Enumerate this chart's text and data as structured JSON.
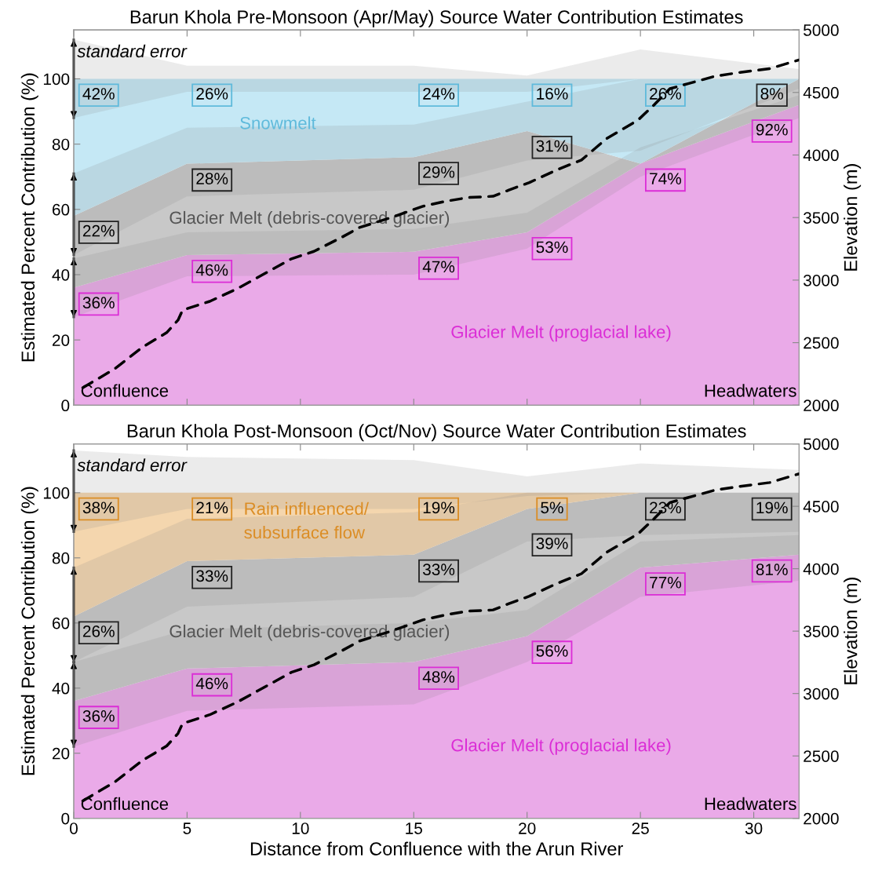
{
  "chart_data": [
    {
      "type": "area",
      "stacked": true,
      "title": "Barun Khola Pre-Monsoon (Apr/May) Source Water Contribution Estimates",
      "ylabel": "Estimated Percent Contribution (%)",
      "y2label": "Elevation (m)",
      "x": [
        0,
        5,
        15,
        20,
        25,
        32
      ],
      "xlim": [
        0,
        32
      ],
      "xticks": [
        0,
        5,
        10,
        15,
        20,
        25,
        30
      ],
      "ylim": [
        0,
        115
      ],
      "yticks": [
        0,
        20,
        40,
        60,
        80,
        100
      ],
      "y2lim": [
        2000,
        5000
      ],
      "y2ticks": [
        2000,
        2500,
        3000,
        3500,
        4000,
        4500,
        5000
      ],
      "tick_labels": "y",
      "grid": false,
      "legend": false,
      "annotations": [
        {
          "text": "standard error",
          "x": 0,
          "y": 108
        },
        "Confluence",
        "Headwaters"
      ],
      "series": [
        {
          "name": "Glacier Melt (proglacial lake)",
          "color": "#eaaae8",
          "values": [
            36,
            46,
            47,
            53,
            74,
            92
          ],
          "value_labels": [
            "36%",
            "46%",
            "47%",
            "53%",
            "74%",
            "92%"
          ],
          "lower": [
            27,
            39.5,
            40,
            48,
            70,
            88
          ],
          "upper": [
            45,
            53,
            54,
            59,
            79,
            95
          ]
        },
        {
          "name": "Glacier Melt (debris-covered glacier)",
          "color": "#c8c8c8",
          "values": [
            22,
            28,
            29,
            31,
            0,
            8
          ],
          "value_labels": [
            "22%",
            "28%",
            "29%",
            "31%",
            null,
            "8%"
          ],
          "lower": [
            46,
            64,
            66,
            75,
            78,
            97
          ],
          "upper": [
            71,
            85,
            86,
            93,
            100,
            100
          ]
        },
        {
          "name": "Snowmelt",
          "color": "#c5e8f5",
          "values": [
            42,
            26,
            24,
            16,
            26,
            0
          ],
          "value_labels": [
            "42%",
            "26%",
            "24%",
            "16%",
            "26%",
            null
          ],
          "lower": [
            88,
            96,
            96,
            96,
            100,
            100
          ],
          "upper": [
            112,
            104,
            104,
            101,
            109,
            103
          ]
        },
        {
          "type": "line",
          "axis": "y2",
          "color": "#000000",
          "line_style": "dashed",
          "x": [
            0.4,
            1.8,
            3.0,
            4.1,
            4.6,
            4.8,
            6.0,
            7.2,
            8.1,
            8.8,
            9.6,
            10.6,
            11.8,
            12.6,
            14.0,
            15.4,
            16.4,
            17.4,
            18.5,
            19.2,
            20.1,
            21.3,
            22.4,
            23.5,
            24.9,
            25.6,
            26.3,
            27.1,
            28.3,
            29.4,
            30.7,
            32.0
          ],
          "values": [
            2140,
            2290,
            2460,
            2580,
            2680,
            2760,
            2830,
            2930,
            3020,
            3090,
            3170,
            3230,
            3340,
            3420,
            3500,
            3590,
            3630,
            3660,
            3670,
            3720,
            3780,
            3880,
            3960,
            4130,
            4280,
            4400,
            4530,
            4570,
            4630,
            4660,
            4690,
            4760
          ]
        }
      ]
    },
    {
      "type": "area",
      "stacked": true,
      "title": "Barun Khola Post-Monsoon (Oct/Nov) Source Water Contribution Estimates",
      "xlabel": "Distance from Confluence with the Arun River",
      "ylabel": "Estimated Percent Contribution (%)",
      "y2label": "Elevation (m)",
      "x": [
        0,
        5,
        15,
        20,
        25,
        32
      ],
      "xlim": [
        0,
        32
      ],
      "xticks": [
        0,
        5,
        10,
        15,
        20,
        25,
        30
      ],
      "ylim": [
        0,
        115
      ],
      "yticks": [
        0,
        20,
        40,
        60,
        80,
        100
      ],
      "y2lim": [
        2000,
        5000
      ],
      "y2ticks": [
        2000,
        2500,
        3000,
        3500,
        4000,
        4500,
        5000
      ],
      "grid": false,
      "legend": false,
      "annotations": [
        {
          "text": "standard error",
          "x": 0,
          "y": 108
        },
        "Confluence",
        "Headwaters"
      ],
      "series": [
        {
          "name": "Glacier Melt (proglacial lake)",
          "color": "#eaaae8",
          "values": [
            36,
            46,
            48,
            56,
            77,
            81
          ],
          "value_labels": [
            "36%",
            "46%",
            "48%",
            "56%",
            "77%",
            "81%"
          ],
          "lower": [
            22,
            33,
            35,
            48,
            68,
            73
          ],
          "upper": [
            48,
            58,
            60,
            64,
            85,
            87
          ]
        },
        {
          "name": "Glacier Melt (debris-covered glacier)",
          "color": "#c8c8c8",
          "values": [
            26,
            33,
            33,
            39,
            23,
            19
          ],
          "value_labels": [
            "26%",
            "33%",
            "33%",
            "39%",
            "23%",
            "19%"
          ],
          "lower": [
            48,
            65,
            68,
            85,
            87,
            88
          ],
          "upper": [
            77,
            92,
            94,
            100,
            100,
            100
          ]
        },
        {
          "name": "Rain influenced/\nsubsurface flow",
          "color": "#f4d6ae",
          "values": [
            38,
            21,
            19,
            5,
            0,
            0
          ],
          "value_labels": [
            "38%",
            "21%",
            "19%",
            "5%",
            null,
            null
          ],
          "lower": [
            88,
            95,
            95,
            99,
            100,
            100
          ],
          "upper": [
            113,
            111,
            110,
            105,
            109,
            107
          ]
        },
        {
          "type": "line",
          "axis": "y2",
          "color": "#000000",
          "line_style": "dashed",
          "x": [
            0.4,
            1.8,
            3.0,
            4.1,
            4.6,
            4.8,
            6.0,
            7.2,
            8.1,
            8.8,
            9.6,
            10.6,
            11.8,
            12.6,
            14.0,
            15.4,
            16.4,
            17.4,
            18.5,
            19.2,
            20.1,
            21.3,
            22.4,
            23.5,
            24.9,
            25.6,
            26.3,
            27.1,
            28.3,
            29.4,
            30.7,
            32.0
          ],
          "values": [
            2140,
            2290,
            2460,
            2580,
            2680,
            2760,
            2830,
            2930,
            3020,
            3090,
            3170,
            3230,
            3340,
            3420,
            3500,
            3590,
            3630,
            3660,
            3670,
            3720,
            3780,
            3880,
            3960,
            4130,
            4280,
            4400,
            4530,
            4570,
            4630,
            4660,
            4690,
            4760
          ]
        }
      ]
    }
  ]
}
